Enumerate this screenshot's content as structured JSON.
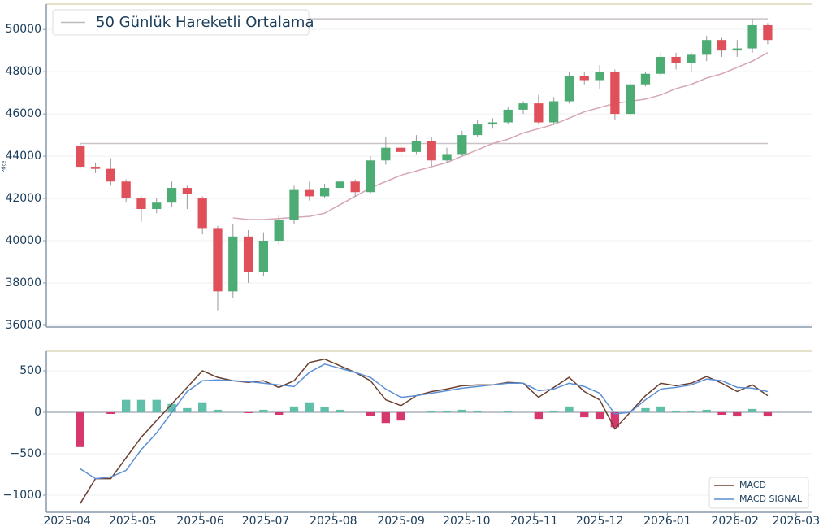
{
  "chart_data": [
    {
      "type": "candlestick",
      "y_label": "Price",
      "categories": [
        null,
        null,
        null,
        null,
        null,
        null,
        null,
        null,
        null,
        null,
        null,
        null,
        null,
        null,
        null,
        null,
        null,
        null,
        null,
        null,
        null,
        null,
        null,
        null,
        null,
        null,
        null,
        null,
        null,
        null,
        null,
        null,
        null,
        null,
        null,
        null,
        null,
        null,
        null,
        null,
        null,
        null,
        null,
        null,
        null,
        null
      ],
      "open": [
        44500,
        43500,
        43400,
        42800,
        42000,
        41500,
        41800,
        42500,
        42000,
        40600,
        37600,
        40200,
        38500,
        40000,
        41000,
        42400,
        42100,
        42500,
        42800,
        42300,
        43800,
        44400,
        44200,
        44700,
        43800,
        44100,
        45000,
        45500,
        45600,
        46200,
        46500,
        45600,
        46600,
        47800,
        47600,
        48000,
        46000,
        47400,
        47900,
        48700,
        48400,
        48800,
        49500,
        49000,
        49100,
        50200
      ],
      "high": [
        44600,
        43700,
        43900,
        42900,
        42100,
        42000,
        42800,
        42600,
        42100,
        40700,
        40800,
        40500,
        40400,
        41200,
        42600,
        42800,
        42700,
        43000,
        42900,
        44000,
        44900,
        44600,
        45000,
        44900,
        44400,
        45200,
        45700,
        45800,
        46300,
        46600,
        46900,
        46800,
        48000,
        48000,
        48300,
        48100,
        47600,
        48000,
        48900,
        48900,
        48900,
        49700,
        49600,
        49500,
        50500,
        50300
      ],
      "low": [
        43400,
        43200,
        42600,
        41800,
        40900,
        41300,
        41600,
        41500,
        40300,
        36700,
        37300,
        38000,
        38300,
        39800,
        40800,
        41900,
        42000,
        42300,
        42100,
        42200,
        43600,
        44000,
        44100,
        43500,
        43700,
        44000,
        44900,
        45300,
        45500,
        46000,
        45500,
        45500,
        46500,
        47400,
        47200,
        45700,
        45900,
        47300,
        47800,
        48100,
        48000,
        48500,
        48700,
        48700,
        48900,
        49300
      ],
      "close": [
        43500,
        43400,
        42800,
        42000,
        41500,
        41800,
        42500,
        42200,
        40600,
        37600,
        40200,
        38500,
        40000,
        41000,
        42400,
        42100,
        42500,
        42800,
        42300,
        43800,
        44400,
        44200,
        44700,
        43800,
        44100,
        45000,
        45500,
        45600,
        46200,
        46500,
        45600,
        46600,
        47800,
        47600,
        48000,
        46000,
        47400,
        47900,
        48700,
        48400,
        48800,
        49500,
        49000,
        49100,
        50200,
        49500
      ],
      "up_color": "#4dab74",
      "down_color": "#e0505a",
      "series": [
        {
          "name": "50 Günlük Hareketli Ortalama",
          "color": "#d6a5b6",
          "values": [
            null,
            null,
            null,
            null,
            null,
            null,
            null,
            null,
            null,
            null,
            41080,
            41000,
            41000,
            41050,
            41100,
            41150,
            41300,
            41700,
            42100,
            42500,
            42800,
            43100,
            43300,
            43500,
            43700,
            44000,
            44300,
            44600,
            44800,
            45100,
            45300,
            45500,
            45800,
            46100,
            46300,
            46500,
            46600,
            46700,
            46900,
            47200,
            47400,
            47700,
            47900,
            48200,
            48500,
            48900
          ]
        }
      ],
      "hlines": {
        "values": [
          44600,
          50500
        ],
        "color": "#c9c2c8"
      },
      "legend": "upper left",
      "xlim": [
        -2.22,
        47.93
      ],
      "ylim": [
        35920,
        51200
      ],
      "yticks": [
        36000,
        38000,
        40000,
        42000,
        44000,
        46000,
        48000,
        50000
      ],
      "grid": true
    },
    {
      "type": "macd",
      "categories": [
        null,
        null,
        null,
        null,
        null,
        null,
        null,
        null,
        null,
        null,
        null,
        null,
        null,
        null,
        null,
        null,
        null,
        null,
        null,
        null,
        null,
        null,
        null,
        null,
        null,
        null,
        null,
        null,
        null,
        null,
        null,
        null,
        null,
        null,
        null,
        null,
        null,
        null,
        null,
        null,
        null,
        null,
        null,
        null,
        null,
        null
      ],
      "series": [
        {
          "name": "MACD",
          "color": "#6b3f2f",
          "values": [
            -1100,
            -800,
            -800,
            -550,
            -300,
            -100,
            100,
            300,
            500,
            420,
            380,
            360,
            380,
            300,
            380,
            600,
            640,
            560,
            480,
            380,
            150,
            80,
            200,
            250,
            280,
            320,
            330,
            330,
            360,
            350,
            180,
            300,
            420,
            250,
            150,
            -200,
            0,
            200,
            350,
            320,
            350,
            430,
            350,
            250,
            330,
            200
          ]
        },
        {
          "name": "MACD SIGNAL",
          "color": "#5b8fd6",
          "values": [
            -680,
            -800,
            -780,
            -700,
            -450,
            -250,
            0,
            250,
            380,
            390,
            380,
            370,
            350,
            330,
            310,
            480,
            580,
            530,
            480,
            420,
            280,
            180,
            200,
            230,
            260,
            290,
            310,
            330,
            350,
            350,
            260,
            280,
            350,
            310,
            230,
            -20,
            0,
            150,
            280,
            300,
            330,
            400,
            380,
            300,
            290,
            250
          ]
        }
      ],
      "histogram": {
        "values": [
          -420,
          0,
          -20,
          150,
          150,
          150,
          100,
          50,
          120,
          30,
          0,
          -10,
          30,
          -30,
          70,
          120,
          60,
          30,
          0,
          -40,
          -130,
          -100,
          0,
          20,
          20,
          30,
          20,
          0,
          10,
          0,
          -80,
          20,
          70,
          -60,
          -80,
          -180,
          0,
          50,
          70,
          20,
          20,
          30,
          -30,
          -50,
          40,
          -50
        ],
        "pos_color": "#5fbfa8",
        "neg_color": "#d6386e"
      },
      "legend": "lower right",
      "xlim": [
        -2.22,
        47.93
      ],
      "xticks": [
        {
          "value": -0.86,
          "label": "2025-04"
        },
        {
          "value": 3.43,
          "label": "2025-05"
        },
        {
          "value": 7.86,
          "label": "2025-06"
        },
        {
          "value": 12.14,
          "label": "2025-07"
        },
        {
          "value": 16.57,
          "label": "2025-08"
        },
        {
          "value": 21.0,
          "label": "2025-09"
        },
        {
          "value": 25.29,
          "label": "2025-10"
        },
        {
          "value": 29.71,
          "label": "2025-11"
        },
        {
          "value": 34.0,
          "label": "2025-12"
        },
        {
          "value": 38.43,
          "label": "2026-01"
        },
        {
          "value": 42.86,
          "label": "2026-02"
        },
        {
          "value": 46.86,
          "label": "2026-03"
        }
      ],
      "ylim": [
        -1206,
        735
      ],
      "yticks": [
        {
          "value": -1000,
          "label": "−1000"
        },
        {
          "value": -500,
          "label": "−500"
        },
        0,
        500
      ],
      "grid": true
    }
  ]
}
